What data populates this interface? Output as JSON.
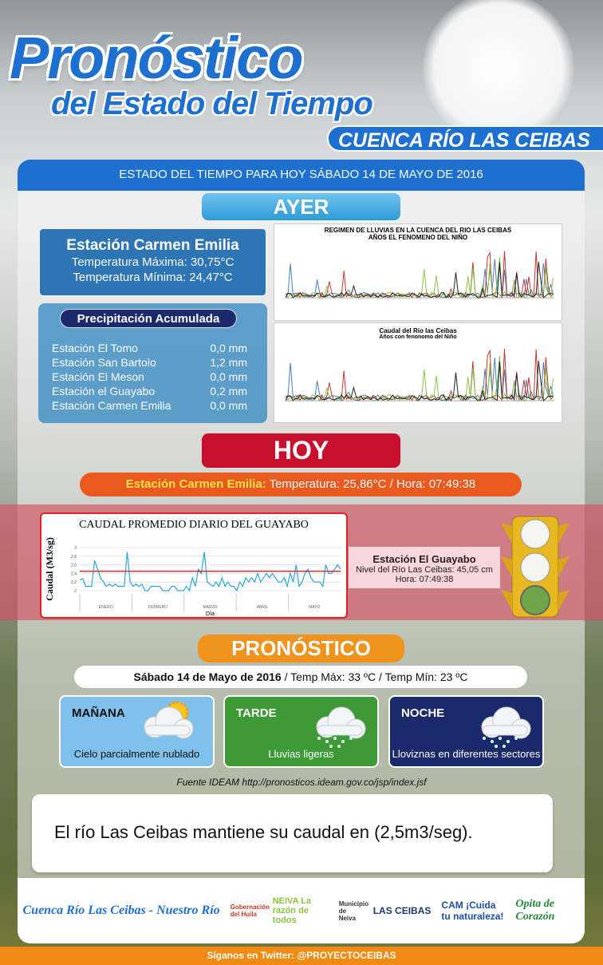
{
  "header": {
    "title_line1": "Pronóstico",
    "title_line2": "del Estado del Tiempo",
    "region": "CUENCA RÍO LAS CEIBAS",
    "date_bar": "ESTADO DEL TIEMPO  PARA HOY  SÁBADO 14 DE MAYO  DE 2016"
  },
  "ayer": {
    "label": "AYER",
    "station": {
      "name": "Estación Carmen Emilia",
      "max": "Temperatura  Máxima: 30,75°C",
      "min": "Temperatura  Mínima: 24,47°C"
    },
    "precip": {
      "title": "Precipitación  Acumulada",
      "rows": [
        {
          "station": "Estación El Tomo",
          "value": "0,0 mm"
        },
        {
          "station": "Estación San Bartolo",
          "value": "1,2 mm"
        },
        {
          "station": "Estación El Meson",
          "value": "0,0 mm"
        },
        {
          "station": "Estación el Guayabo",
          "value": "0,2 mm"
        },
        {
          "station": "Estación Carmen Emilia",
          "value": "0,0 mm"
        }
      ]
    },
    "chart1_title": [
      "REGIMEN DE LLUVIAS EN LA CUENCA DEL RIO LAS CEIBAS",
      "AÑOS EL FENOMENO DEL NIÑO"
    ],
    "chart2_title": [
      "Caudal del Rio las Ceibas",
      "Años con fenonomo del Niño"
    ]
  },
  "hoy": {
    "label": "HOY",
    "station": "Estación Carmen Emilia:",
    "temp": " Temperatura:  25,86°C  / Hora:  07:49:38"
  },
  "guayabo": {
    "name": "Estación  El Guayabo",
    "level": "Nivel del Río  Las Ceibas: 45,05 cm",
    "time": "Hora: 07:49:38",
    "semaphore_state": "green"
  },
  "chart_data": {
    "type": "line",
    "title": "CAUDAL PROMEDIO DIARIO DEL GUAYABO",
    "ylabel": "Caudal (M3/sg)",
    "xlabel": "Día",
    "ylim": [
      2,
      3
    ],
    "yticks": [
      "2",
      "2,2",
      "2,4",
      "2,6",
      "2,8",
      "3"
    ],
    "months": [
      "ENERO",
      "FEBRERO",
      "MARZO",
      "ABRIL",
      "MAYO"
    ],
    "threshold": 2.45,
    "threshold_color": "#e02020",
    "series_color": "#29a8d8",
    "values": [
      2.25,
      2.28,
      2.1,
      2.1,
      2.1,
      2.7,
      2.5,
      2.3,
      2.2,
      2.1,
      2.15,
      2.1,
      2.15,
      2.1,
      2.1,
      2.1,
      2.9,
      2.2,
      2.1,
      2.15,
      2.1,
      2.15,
      2.0,
      2.0,
      2.1,
      2.1,
      2.1,
      2.1,
      2.0,
      2.0,
      2.0,
      2.1,
      2.1,
      2.0,
      2.0,
      2.0,
      2.1,
      2.0,
      2.3,
      2.1,
      2.5,
      2.4,
      2.9,
      2.2,
      2.15,
      2.1,
      2.2,
      2.1,
      2.3,
      2.1,
      2.2,
      2.1,
      2.1,
      2.0,
      2.2,
      2.1,
      2.3,
      2.2,
      2.3,
      2.2,
      2.4,
      2.2,
      2.3,
      2.4,
      2.3,
      2.4,
      2.3,
      2.2,
      2.2,
      2.3,
      2.1,
      2.4,
      2.2,
      2.6,
      2.1,
      2.2,
      2.4,
      2.5,
      2.3,
      2.2,
      2.2,
      2.2,
      2.1,
      2.6,
      2.4,
      2.4,
      2.5,
      2.6,
      2.5
    ]
  },
  "pronostico": {
    "label": "PRONÓSTICO",
    "date": "Sábado 14 de Mayo de 2016",
    "temps": " / Temp Máx:  33 ºC    /    Temp Mín:  23 ºC",
    "periods": [
      {
        "label": "MAÑANA",
        "desc": "Cielo parcialmente nublado",
        "icon": "partly-cloudy-icon",
        "color": "#7fc1ea"
      },
      {
        "label": "TARDE",
        "desc": "Lluvias ligeras",
        "icon": "rain-cloud-icon",
        "color": "#3d9a37"
      },
      {
        "label": "NOCHE",
        "desc": "Lloviznas  en diferentes  sectores",
        "icon": "rain-cloud-icon",
        "color": "#1b2a6b"
      }
    ]
  },
  "source": "Fuente IDEAM  http://pronosticos.ideam.gov.co/jsp/index.jsf",
  "message": "El río Las Ceibas mantiene su caudal en (2,5m3/seg).",
  "logos": [
    "Cuenca Río Las Ceibas - Nuestro Río",
    "Gobernación del Huila",
    "NEIVA La razón de todos",
    "Municipio de Neiva",
    "LAS CEIBAS",
    "CAM ¡Cuida tu naturaleza!",
    "Opita de Corazón"
  ],
  "footer": "Síganos en Twitter: @PROYECTOCEIBAS"
}
